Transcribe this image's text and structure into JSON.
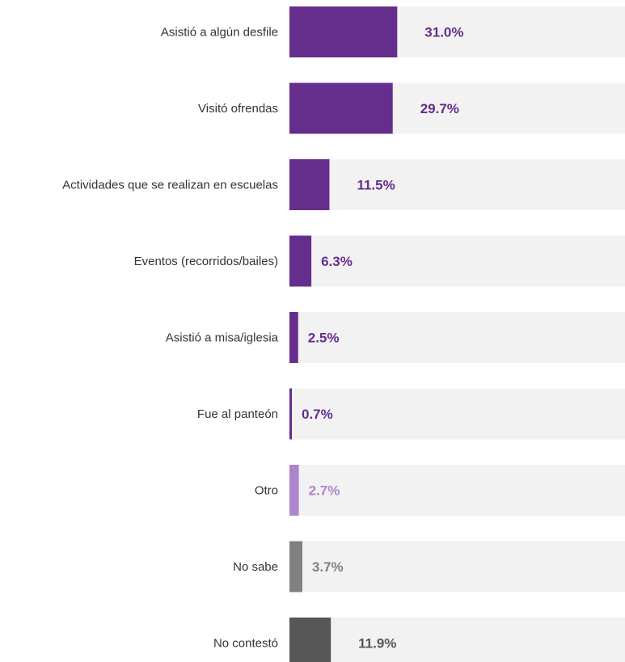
{
  "chart_data": {
    "type": "bar",
    "orientation": "horizontal",
    "title": "",
    "xlabel": "",
    "ylabel": "",
    "xlim": [
      0,
      100
    ],
    "grid": false,
    "legend": "none",
    "value_suffix": "%",
    "categories": [
      "Asistió a algún desfile",
      "Visitó ofrendas",
      "Actividades que se realizan en escuelas",
      "Eventos (recorridos/bailes)",
      "Asistió a misa/iglesia",
      "Fue al panteón",
      "Otro",
      "No sabe",
      "No contestó"
    ],
    "values": [
      31.0,
      29.7,
      11.5,
      6.3,
      2.5,
      0.7,
      2.7,
      3.7,
      11.9
    ],
    "value_labels": [
      "31.0%",
      "29.7%",
      "11.5%",
      "6.3%",
      "2.5%",
      "0.7%",
      "2.7%",
      "3.7%",
      "11.9%"
    ],
    "bar_colors": [
      "#652d8c",
      "#652d8c",
      "#652d8c",
      "#652d8c",
      "#652d8c",
      "#652d8c",
      "#ad85cc",
      "#808080",
      "#575757"
    ],
    "label_colors": [
      "#652d8c",
      "#652d8c",
      "#652d8c",
      "#652d8c",
      "#652d8c",
      "#652d8c",
      "#ad85cc",
      "#808080",
      "#575757"
    ],
    "track_color": "#f2f2f2"
  }
}
